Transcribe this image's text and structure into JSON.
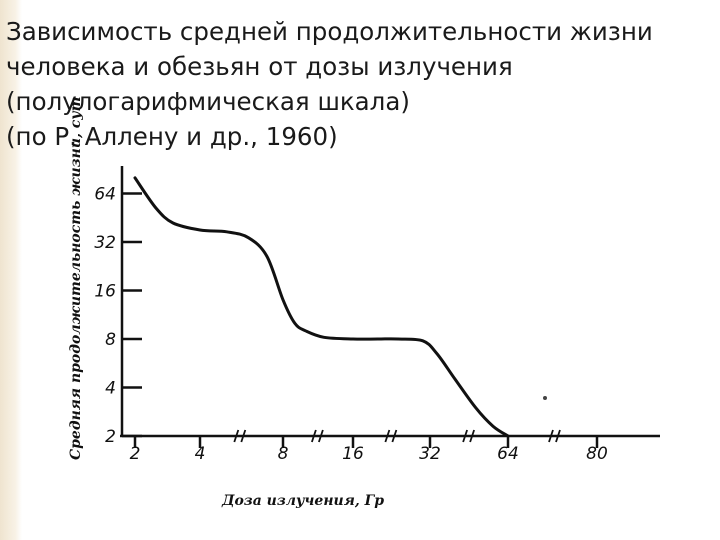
{
  "slide": {
    "title_lines": [
      "Зависимость средней продолжительности жизни",
      "человека и обезьян от дозы излучения",
      "(полулогарифмическая шкала)",
      "(по Р. Аллену и др., 1960)"
    ]
  },
  "chart_data": {
    "type": "line",
    "title": "Зависимость средней продолжительности жизни человека и обезьян от дозы излучения (полулогарифмическая шкала) (по Р. Аллену и др., 1960)",
    "xlabel": "Доза излучения, Гр",
    "ylabel": "Средняя продолжительность жизни, сут",
    "x_scale": "log2 (broken axis)",
    "y_scale": "log2",
    "x_ticks": [
      "2",
      "4",
      "8",
      "16",
      "32",
      "64",
      "80"
    ],
    "y_ticks": [
      "2",
      "4",
      "8",
      "16",
      "32",
      "64"
    ],
    "ylim": [
      2,
      64
    ],
    "grid": false,
    "series": [
      {
        "x": [
          2,
          2.5,
          3,
          4,
          5,
          6,
          7,
          8,
          9,
          10,
          12,
          16,
          20,
          24,
          30,
          34,
          40,
          48,
          56,
          64
        ],
        "values": [
          80,
          52,
          42,
          38,
          37,
          34,
          26,
          14,
          10,
          9,
          8.2,
          8,
          8,
          8,
          7.8,
          6.5,
          4.5,
          3,
          2.3,
          2
        ]
      }
    ]
  }
}
